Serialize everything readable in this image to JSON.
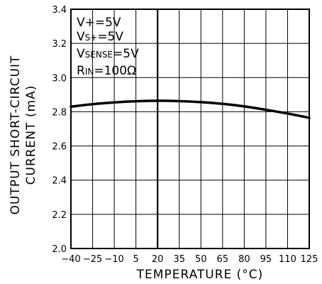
{
  "chart_data": {
    "type": "line",
    "title": "",
    "xlabel": "TEMPERATURE (°C)",
    "ylabel_line1": "OUTPUT SHORT-CIRCUIT",
    "ylabel_line2": "CURRENT (mA)",
    "xlim": [
      -40,
      125
    ],
    "ylim": [
      2.0,
      3.4
    ],
    "x_ticks": [
      -40,
      -25,
      -10,
      5,
      20,
      35,
      50,
      65,
      80,
      95,
      110,
      125
    ],
    "x_tick_labels": [
      "−40",
      "−25",
      "−10",
      "5",
      "20",
      "35",
      "50",
      "65",
      "80",
      "95",
      "110",
      "125"
    ],
    "y_ticks": [
      2.0,
      2.2,
      2.4,
      2.6,
      2.8,
      3.0,
      3.2,
      3.4
    ],
    "y_tick_labels": [
      "2.0",
      "2.2",
      "2.4",
      "2.6",
      "2.8",
      "3.0",
      "3.2",
      "3.4"
    ],
    "grid": true,
    "series": [
      {
        "x": [
          -40,
          -25,
          -10,
          5,
          20,
          35,
          50,
          65,
          80,
          95,
          110,
          125
        ],
        "y": [
          2.83,
          2.845,
          2.855,
          2.862,
          2.865,
          2.863,
          2.857,
          2.847,
          2.832,
          2.812,
          2.79,
          2.765
        ]
      }
    ],
    "annotations": [
      {
        "main": "V+=5V"
      },
      {
        "main": "V",
        "sub": "S+",
        "rest": "=5V"
      },
      {
        "main": "V",
        "sub": "SENSE",
        "rest": "=5V"
      },
      {
        "main": "R",
        "sub": "IN",
        "rest": "=100Ω"
      }
    ]
  }
}
